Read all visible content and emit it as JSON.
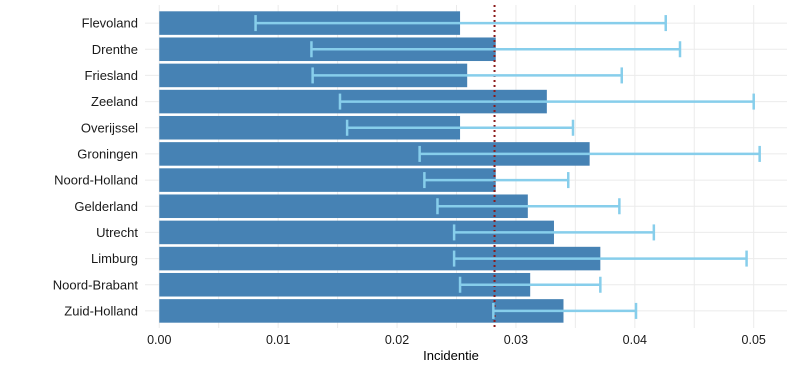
{
  "chart_data": {
    "type": "bar",
    "orientation": "horizontal",
    "categories": [
      "Flevoland",
      "Drenthe",
      "Friesland",
      "Zeeland",
      "Overijssel",
      "Groningen",
      "Noord-Holland",
      "Gelderland",
      "Utrecht",
      "Limburg",
      "Noord-Brabant",
      "Zuid-Holland"
    ],
    "values": [
      0.0253,
      0.0283,
      0.0259,
      0.0326,
      0.0253,
      0.0362,
      0.0283,
      0.031,
      0.0332,
      0.0371,
      0.0312,
      0.034
    ],
    "error_low": [
      0.0081,
      0.0128,
      0.0129,
      0.0152,
      0.0158,
      0.0219,
      0.0223,
      0.0234,
      0.0248,
      0.0248,
      0.0253,
      0.0281
    ],
    "error_high": [
      0.0426,
      0.0438,
      0.0389,
      0.05,
      0.0348,
      0.0505,
      0.0344,
      0.0387,
      0.0416,
      0.0494,
      0.0371,
      0.0401
    ],
    "reference_line": 0.0282,
    "xlabel": "Incidentie",
    "ylabel": "",
    "xlim": [
      -0.0012,
      0.0528
    ],
    "xticks": [
      0.0,
      0.01,
      0.02,
      0.03,
      0.04,
      0.05
    ],
    "xtick_labels": [
      "0.00",
      "0.01",
      "0.02",
      "0.03",
      "0.04",
      "0.05"
    ],
    "grid": true,
    "colors": {
      "bar": "#4682b4",
      "error_bar": "#87ceeb",
      "reference_line": "#8b1a1a"
    }
  }
}
